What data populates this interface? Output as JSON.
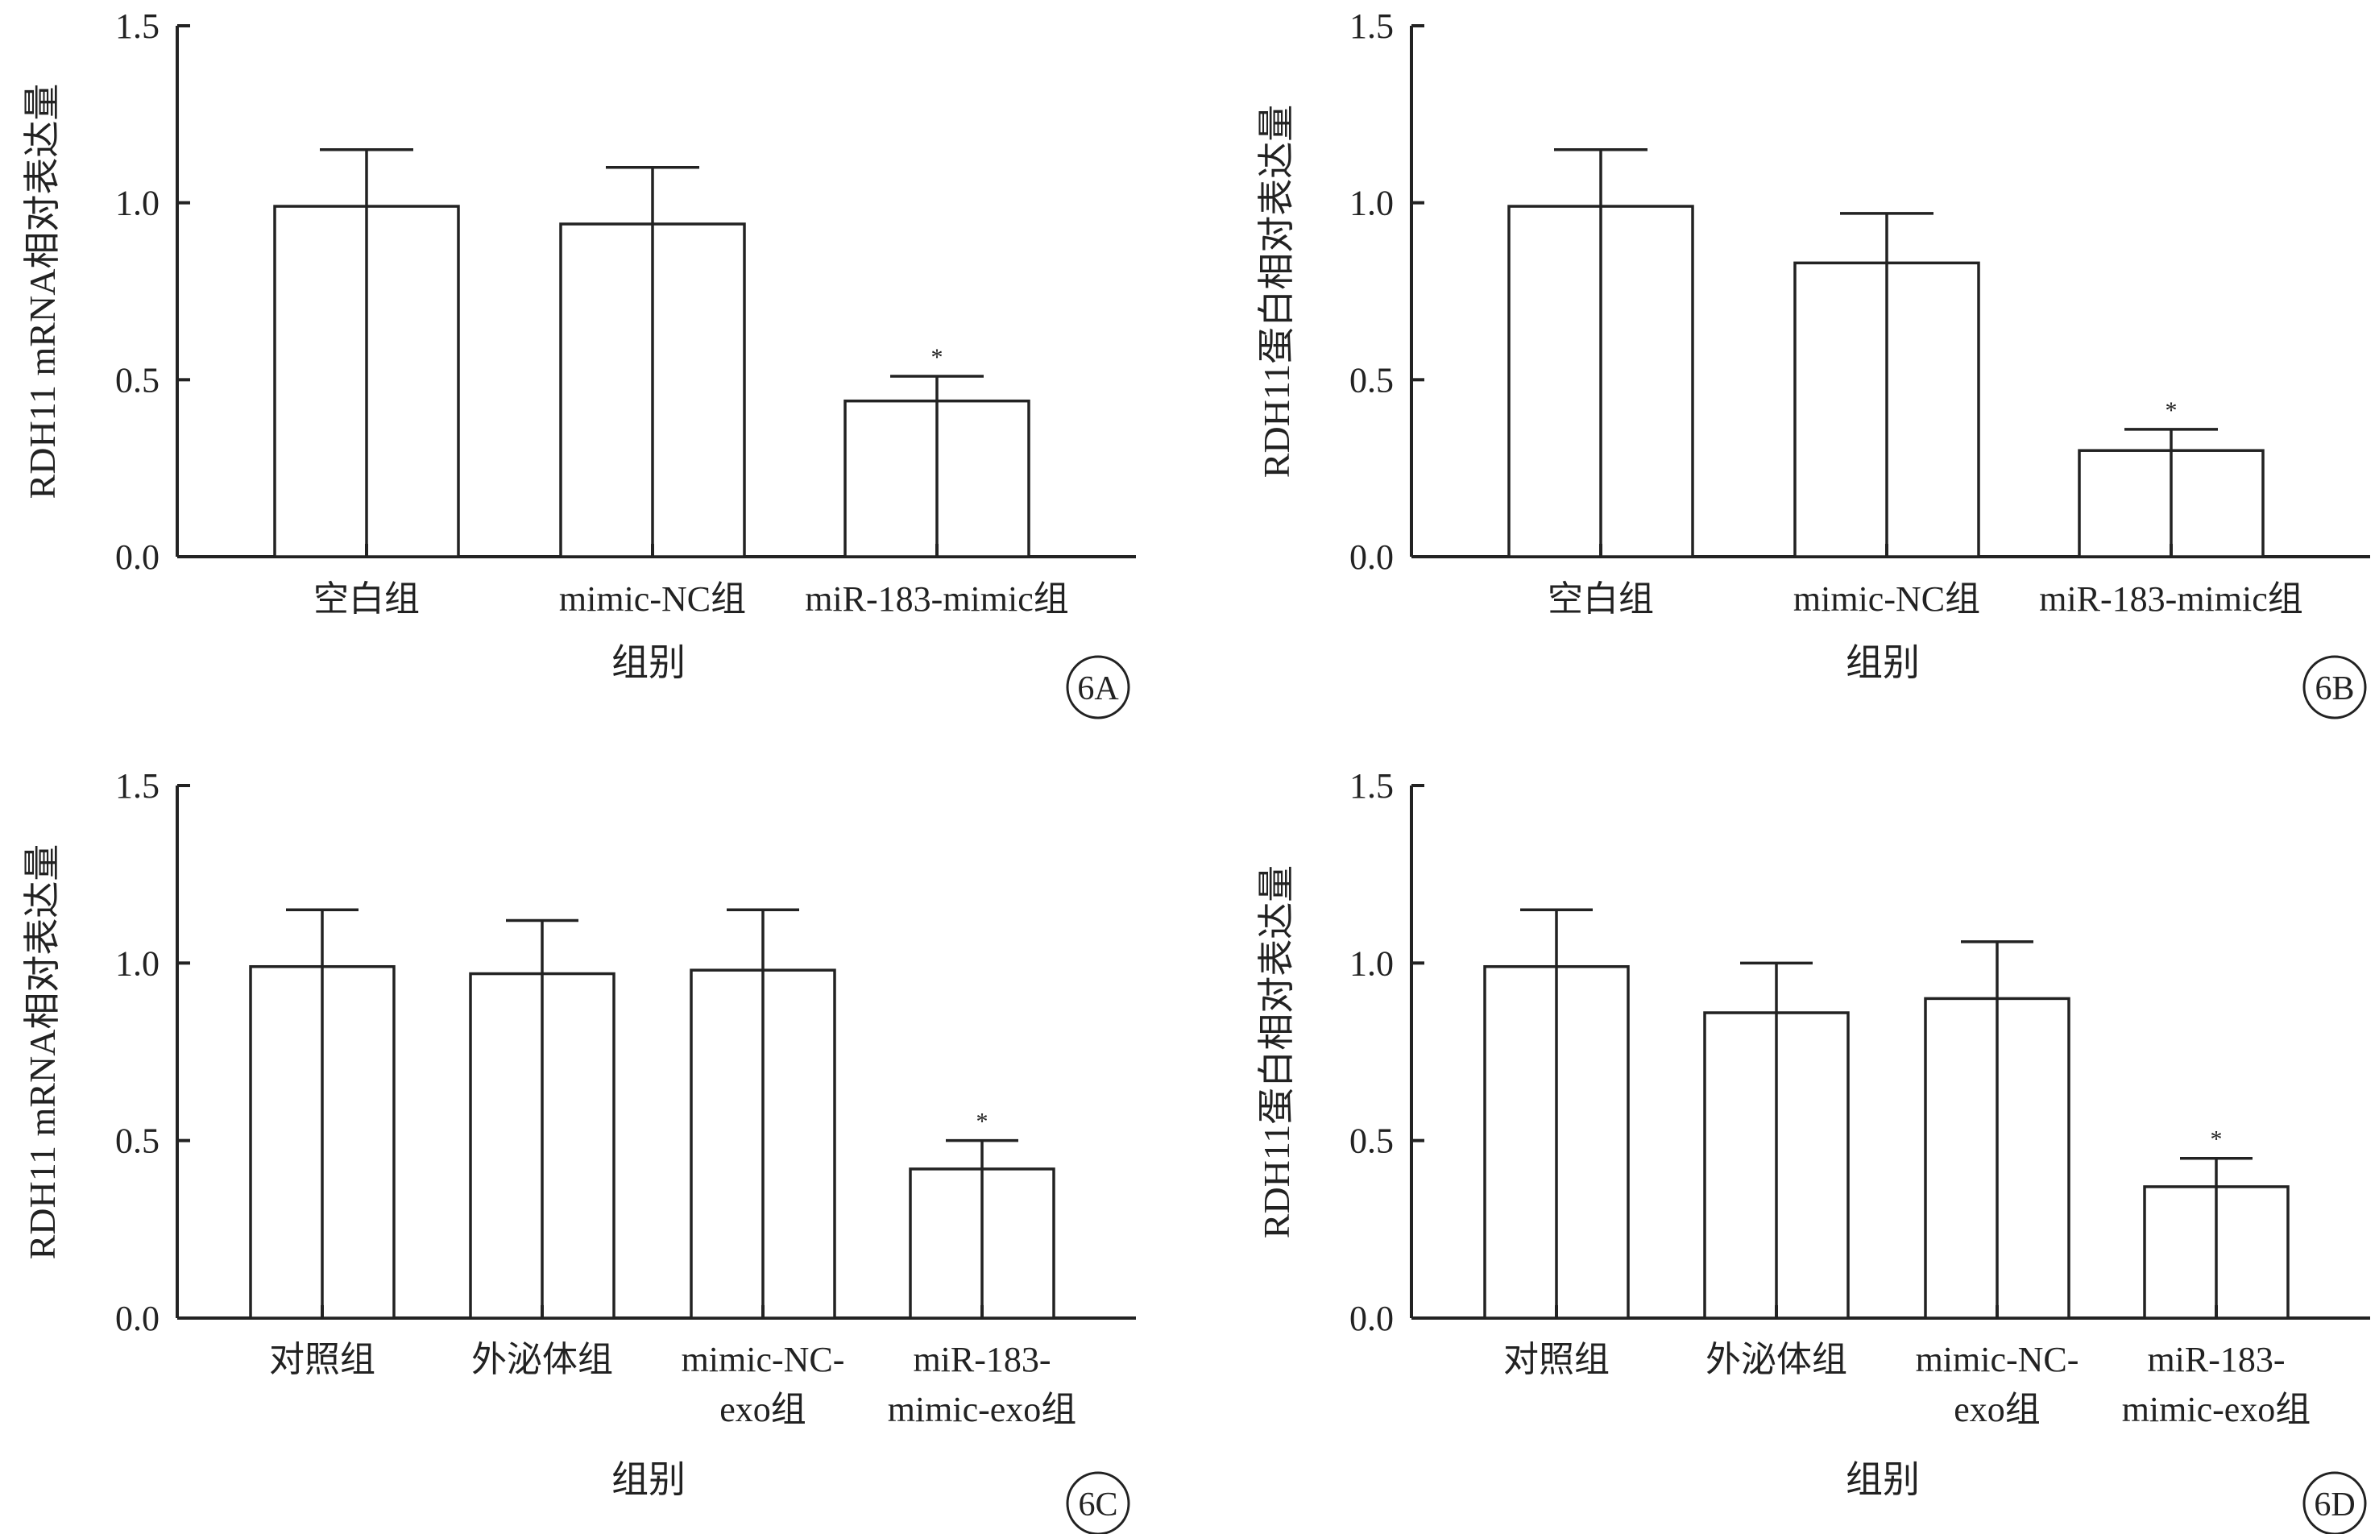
{
  "chart_data": [
    {
      "type": "bar",
      "panel_label": "6A",
      "categories": [
        "空白组",
        "mimic-NC组",
        "miR-183-mimic组"
      ],
      "values": [
        0.99,
        0.94,
        0.44
      ],
      "error": [
        0.16,
        0.16,
        0.07
      ],
      "significance": [
        "",
        "",
        "*"
      ],
      "xlabel": "组别",
      "ylabel": "RDH11 mRNA相对表达量",
      "ylim": [
        0,
        1.5
      ],
      "yticks": [
        "0.0",
        "0.5",
        "1.0",
        "1.5"
      ]
    },
    {
      "type": "bar",
      "panel_label": "6B",
      "categories": [
        "空白组",
        "mimic-NC组",
        "miR-183-mimic组"
      ],
      "values": [
        0.99,
        0.83,
        0.3
      ],
      "error": [
        0.16,
        0.14,
        0.06
      ],
      "significance": [
        "",
        "",
        "*"
      ],
      "xlabel": "组别",
      "ylabel": "RDH11蛋白相对表达量",
      "ylim": [
        0,
        1.5
      ],
      "yticks": [
        "0.0",
        "0.5",
        "1.0",
        "1.5"
      ]
    },
    {
      "type": "bar",
      "panel_label": "6C",
      "categories": [
        "对照组",
        "外泌体组",
        "mimic-NC-exo组",
        "miR-183-mimic-exo组"
      ],
      "category_lines": [
        [
          "对照组"
        ],
        [
          "外泌体组"
        ],
        [
          "mimic-NC-",
          "exo组"
        ],
        [
          "miR-183-",
          "mimic-exo组"
        ]
      ],
      "values": [
        0.99,
        0.97,
        0.98,
        0.42
      ],
      "error": [
        0.16,
        0.15,
        0.17,
        0.08
      ],
      "significance": [
        "",
        "",
        "",
        "*"
      ],
      "xlabel": "组别",
      "ylabel": "RDH11 mRNA相对表达量",
      "ylim": [
        0,
        1.5
      ],
      "yticks": [
        "0.0",
        "0.5",
        "1.0",
        "1.5"
      ]
    },
    {
      "type": "bar",
      "panel_label": "6D",
      "categories": [
        "对照组",
        "外泌体组",
        "mimic-NC-exo组",
        "miR-183-mimic-exo组"
      ],
      "category_lines": [
        [
          "对照组"
        ],
        [
          "外泌体组"
        ],
        [
          "mimic-NC-",
          "exo组"
        ],
        [
          "miR-183-",
          "mimic-exo组"
        ]
      ],
      "values": [
        0.99,
        0.86,
        0.9,
        0.37
      ],
      "error": [
        0.16,
        0.14,
        0.16,
        0.08
      ],
      "significance": [
        "",
        "",
        "",
        "*"
      ],
      "xlabel": "组别",
      "ylabel": "RDH11蛋白相对表达量",
      "ylim": [
        0,
        1.5
      ],
      "yticks": [
        "0.0",
        "0.5",
        "1.0",
        "1.5"
      ]
    }
  ]
}
